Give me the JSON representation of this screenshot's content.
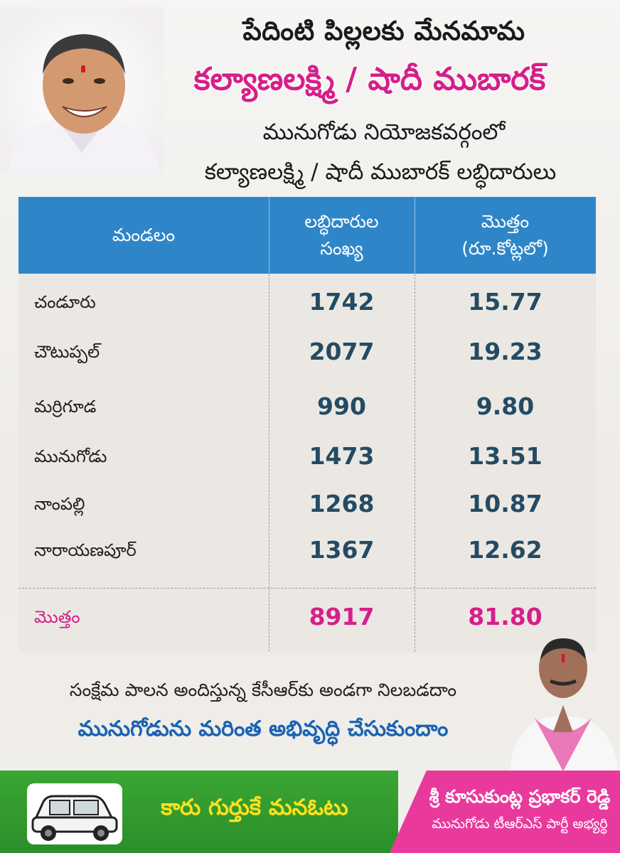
{
  "header": {
    "line1": "పేదింటి పిల్లలకు మేనమామ",
    "line2": "కల్యాణలక్ష్మి / షాదీ ముబారక్",
    "line3": "మునుగోడు నియోజకవర్గంలో",
    "line4": "కల్యాణలక్ష్మి / షాదీ ముబారక్ లబ్ధిదారులు"
  },
  "table": {
    "col_mandal": "మండలం",
    "col_beneficiaries_l1": "లబ్ధిదారుల",
    "col_beneficiaries_l2": "సంఖ్య",
    "col_amount_l1": "మొత్తం",
    "col_amount_l2": "(రూ.కోట్లలో)",
    "rows": [
      {
        "mandal": "చండూరు",
        "beneficiaries": "1742",
        "amount": "15.77"
      },
      {
        "mandal": "చౌటుప్పల్",
        "beneficiaries": "2077",
        "amount": "19.23"
      },
      {
        "mandal": "మర్రిగూడ",
        "beneficiaries": "990",
        "amount": "9.80"
      },
      {
        "mandal": "మునుగోడు",
        "beneficiaries": "1473",
        "amount": "13.51"
      },
      {
        "mandal": "నాంపల్లి",
        "beneficiaries": "1268",
        "amount": "10.87"
      },
      {
        "mandal": "నారాయణపూర్",
        "beneficiaries": "1367",
        "amount": "12.62"
      }
    ],
    "total": {
      "label": "మొత్తం",
      "beneficiaries": "8917",
      "amount": "81.80"
    }
  },
  "slogans": {
    "line1": "సంక్షేమ పాలన అందిస్తున్న కేసీఆర్‌కు అండగా నిలబడదాం",
    "line2": "మునుగోడును మరింత అభివృద్ధి చేసుకుందాం"
  },
  "footer": {
    "vote_slogan": "కారు గుర్తుకే మనఓటు",
    "candidate_name": "శ్రీ కూసుకుంట్ల ప్రభాకర్ రెడ్డి",
    "candidate_role": "మునుగోడు టీఆర్ఎస్ పార్టీ అభ్యర్థి"
  },
  "colors": {
    "accent_pink": "#d61f8a",
    "header_blue": "#2e86c9",
    "value_navy": "#244b63",
    "slogan_blue": "#1a63b3",
    "footer_green": "#3aa633",
    "footer_pink": "#e9399c",
    "slogan_yellow": "#ffe21a"
  }
}
